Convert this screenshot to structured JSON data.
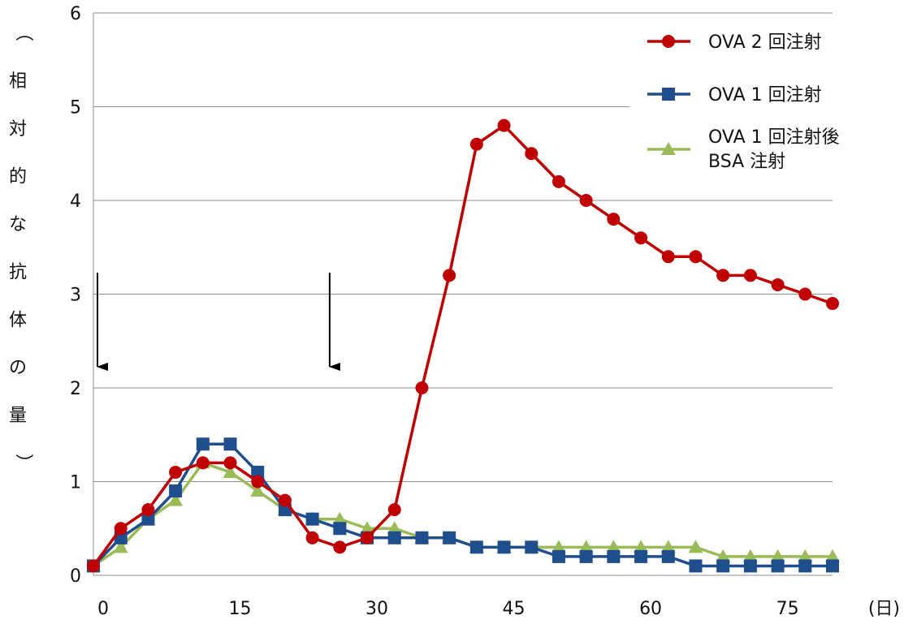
{
  "chart_data": {
    "type": "line",
    "title": "",
    "xlabel": "(日)",
    "ylabel": "（相対的な抗体の量）",
    "xlim": [
      0,
      81
    ],
    "ylim": [
      0,
      6
    ],
    "x_ticks": [
      {
        "value": 0,
        "label": "0"
      },
      {
        "value": 15,
        "label": "15"
      },
      {
        "value": 30,
        "label": "30"
      },
      {
        "value": 45,
        "label": "45"
      },
      {
        "value": 60,
        "label": "60"
      },
      {
        "value": 75,
        "label": "75"
      }
    ],
    "y_ticks": [
      {
        "value": 0,
        "label": "0"
      },
      {
        "value": 1,
        "label": "1"
      },
      {
        "value": 2,
        "label": "2"
      },
      {
        "value": 3,
        "label": "3"
      },
      {
        "value": 4,
        "label": "4"
      },
      {
        "value": 5,
        "label": "5"
      },
      {
        "value": 6,
        "label": "6"
      }
    ],
    "grid": "horizontal",
    "legend_position": "top-right",
    "x": [
      0,
      3,
      6,
      9,
      12,
      15,
      18,
      21,
      24,
      27,
      30,
      33,
      36,
      39,
      42,
      45,
      48,
      51,
      54,
      57,
      60,
      63,
      66,
      69,
      72,
      75,
      78,
      81
    ],
    "series": [
      {
        "name": "OVA 2 回注射",
        "color": "#c00000",
        "marker": "circle",
        "values": [
          0.1,
          0.5,
          0.7,
          1.1,
          1.2,
          1.2,
          1.0,
          0.8,
          0.4,
          0.3,
          0.4,
          0.7,
          2.0,
          3.2,
          4.6,
          4.8,
          4.5,
          4.2,
          4.0,
          3.8,
          3.6,
          3.4,
          3.4,
          3.2,
          3.2,
          3.1,
          3.0,
          2.9
        ]
      },
      {
        "name": "OVA 1 回注射",
        "color": "#1f4e8c",
        "marker": "square",
        "values": [
          0.1,
          0.4,
          0.6,
          0.9,
          1.4,
          1.4,
          1.1,
          0.7,
          0.6,
          0.5,
          0.4,
          0.4,
          0.4,
          0.4,
          0.3,
          0.3,
          0.3,
          0.2,
          0.2,
          0.2,
          0.2,
          0.2,
          0.1,
          0.1,
          0.1,
          0.1,
          0.1,
          0.1
        ]
      },
      {
        "name": "OVA 1 回注射後\nBSA 注射",
        "color": "#9bbb59",
        "marker": "triangle",
        "values": [
          0.1,
          0.3,
          0.6,
          0.8,
          1.2,
          1.1,
          0.9,
          0.7,
          0.6,
          0.6,
          0.5,
          0.5,
          0.4,
          0.4,
          0.3,
          0.3,
          0.3,
          0.3,
          0.3,
          0.3,
          0.3,
          0.3,
          0.3,
          0.2,
          0.2,
          0.2,
          0.2,
          0.2
        ]
      }
    ],
    "annotations": [
      {
        "type": "arrow-down",
        "x": 0
      },
      {
        "type": "arrow-down",
        "x": 25
      }
    ]
  }
}
